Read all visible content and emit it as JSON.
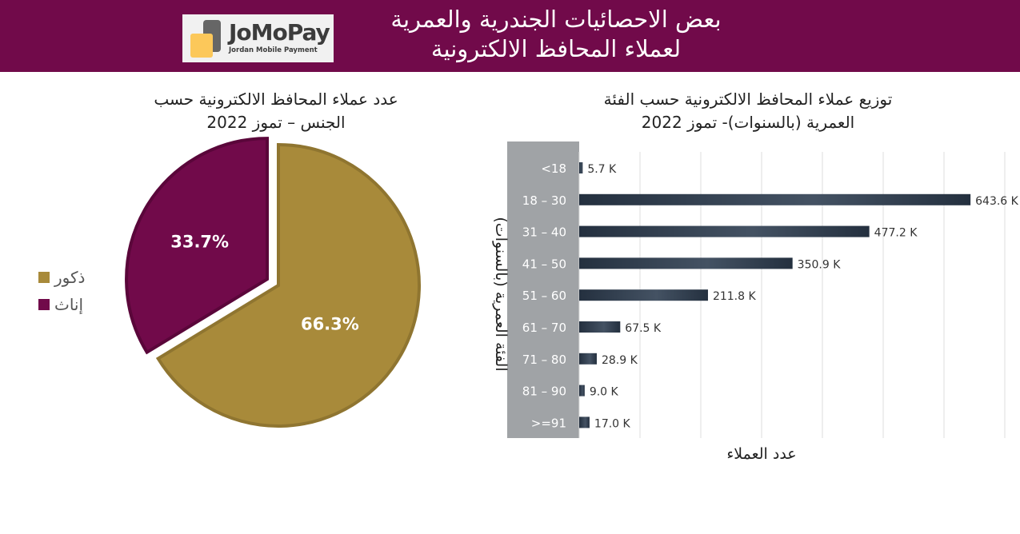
{
  "header": {
    "title_line1": "بعض الاحصائيات الجندرية والعمرية",
    "title_line2": "لعملاء المحافظ الالكترونية",
    "background": "#710a4a",
    "logo": {
      "brand": "JoMoPay",
      "tagline": "Jordan Mobile Payment"
    }
  },
  "chart_data": [
    {
      "type": "pie",
      "title_line1": "عدد عملاء المحافظ الالكترونية حسب",
      "title_line2": "الجنس – تموز 2022",
      "slices": [
        {
          "name": "ذكور",
          "value": 66.3,
          "label": "66.3%",
          "color": "#a88a3a"
        },
        {
          "name": "إناث",
          "value": 33.7,
          "label": "33.7%",
          "color": "#710a4a"
        }
      ],
      "legend_position": "left"
    },
    {
      "type": "bar",
      "orientation": "horizontal",
      "title_line1": "توزيع عملاء المحافظ الالكترونية حسب الفئة",
      "title_line2": "العمرية (بالسنوات)- تموز 2022",
      "xlabel": "عدد العملاء",
      "ylabel": "الفئة العمرية (بالسنوات)",
      "xlim": [
        0,
        700
      ],
      "unit": "K",
      "grid": true,
      "categories": [
        "<18",
        "18 – 30",
        "31 – 40",
        "41 – 50",
        "51 – 60",
        "61 – 70",
        "71 – 80",
        "81 – 90",
        ">=91"
      ],
      "values": [
        5.7,
        643.6,
        477.2,
        350.9,
        211.8,
        67.5,
        28.9,
        9.0,
        17.0
      ],
      "labels": [
        "5.7 K",
        "643.6 K",
        "477.2 K",
        "350.9 K",
        "211.8 K",
        "67.5 K",
        "28.9 K",
        "9.0 K",
        "17.0 K"
      ],
      "bar_color": "#24303f"
    }
  ]
}
